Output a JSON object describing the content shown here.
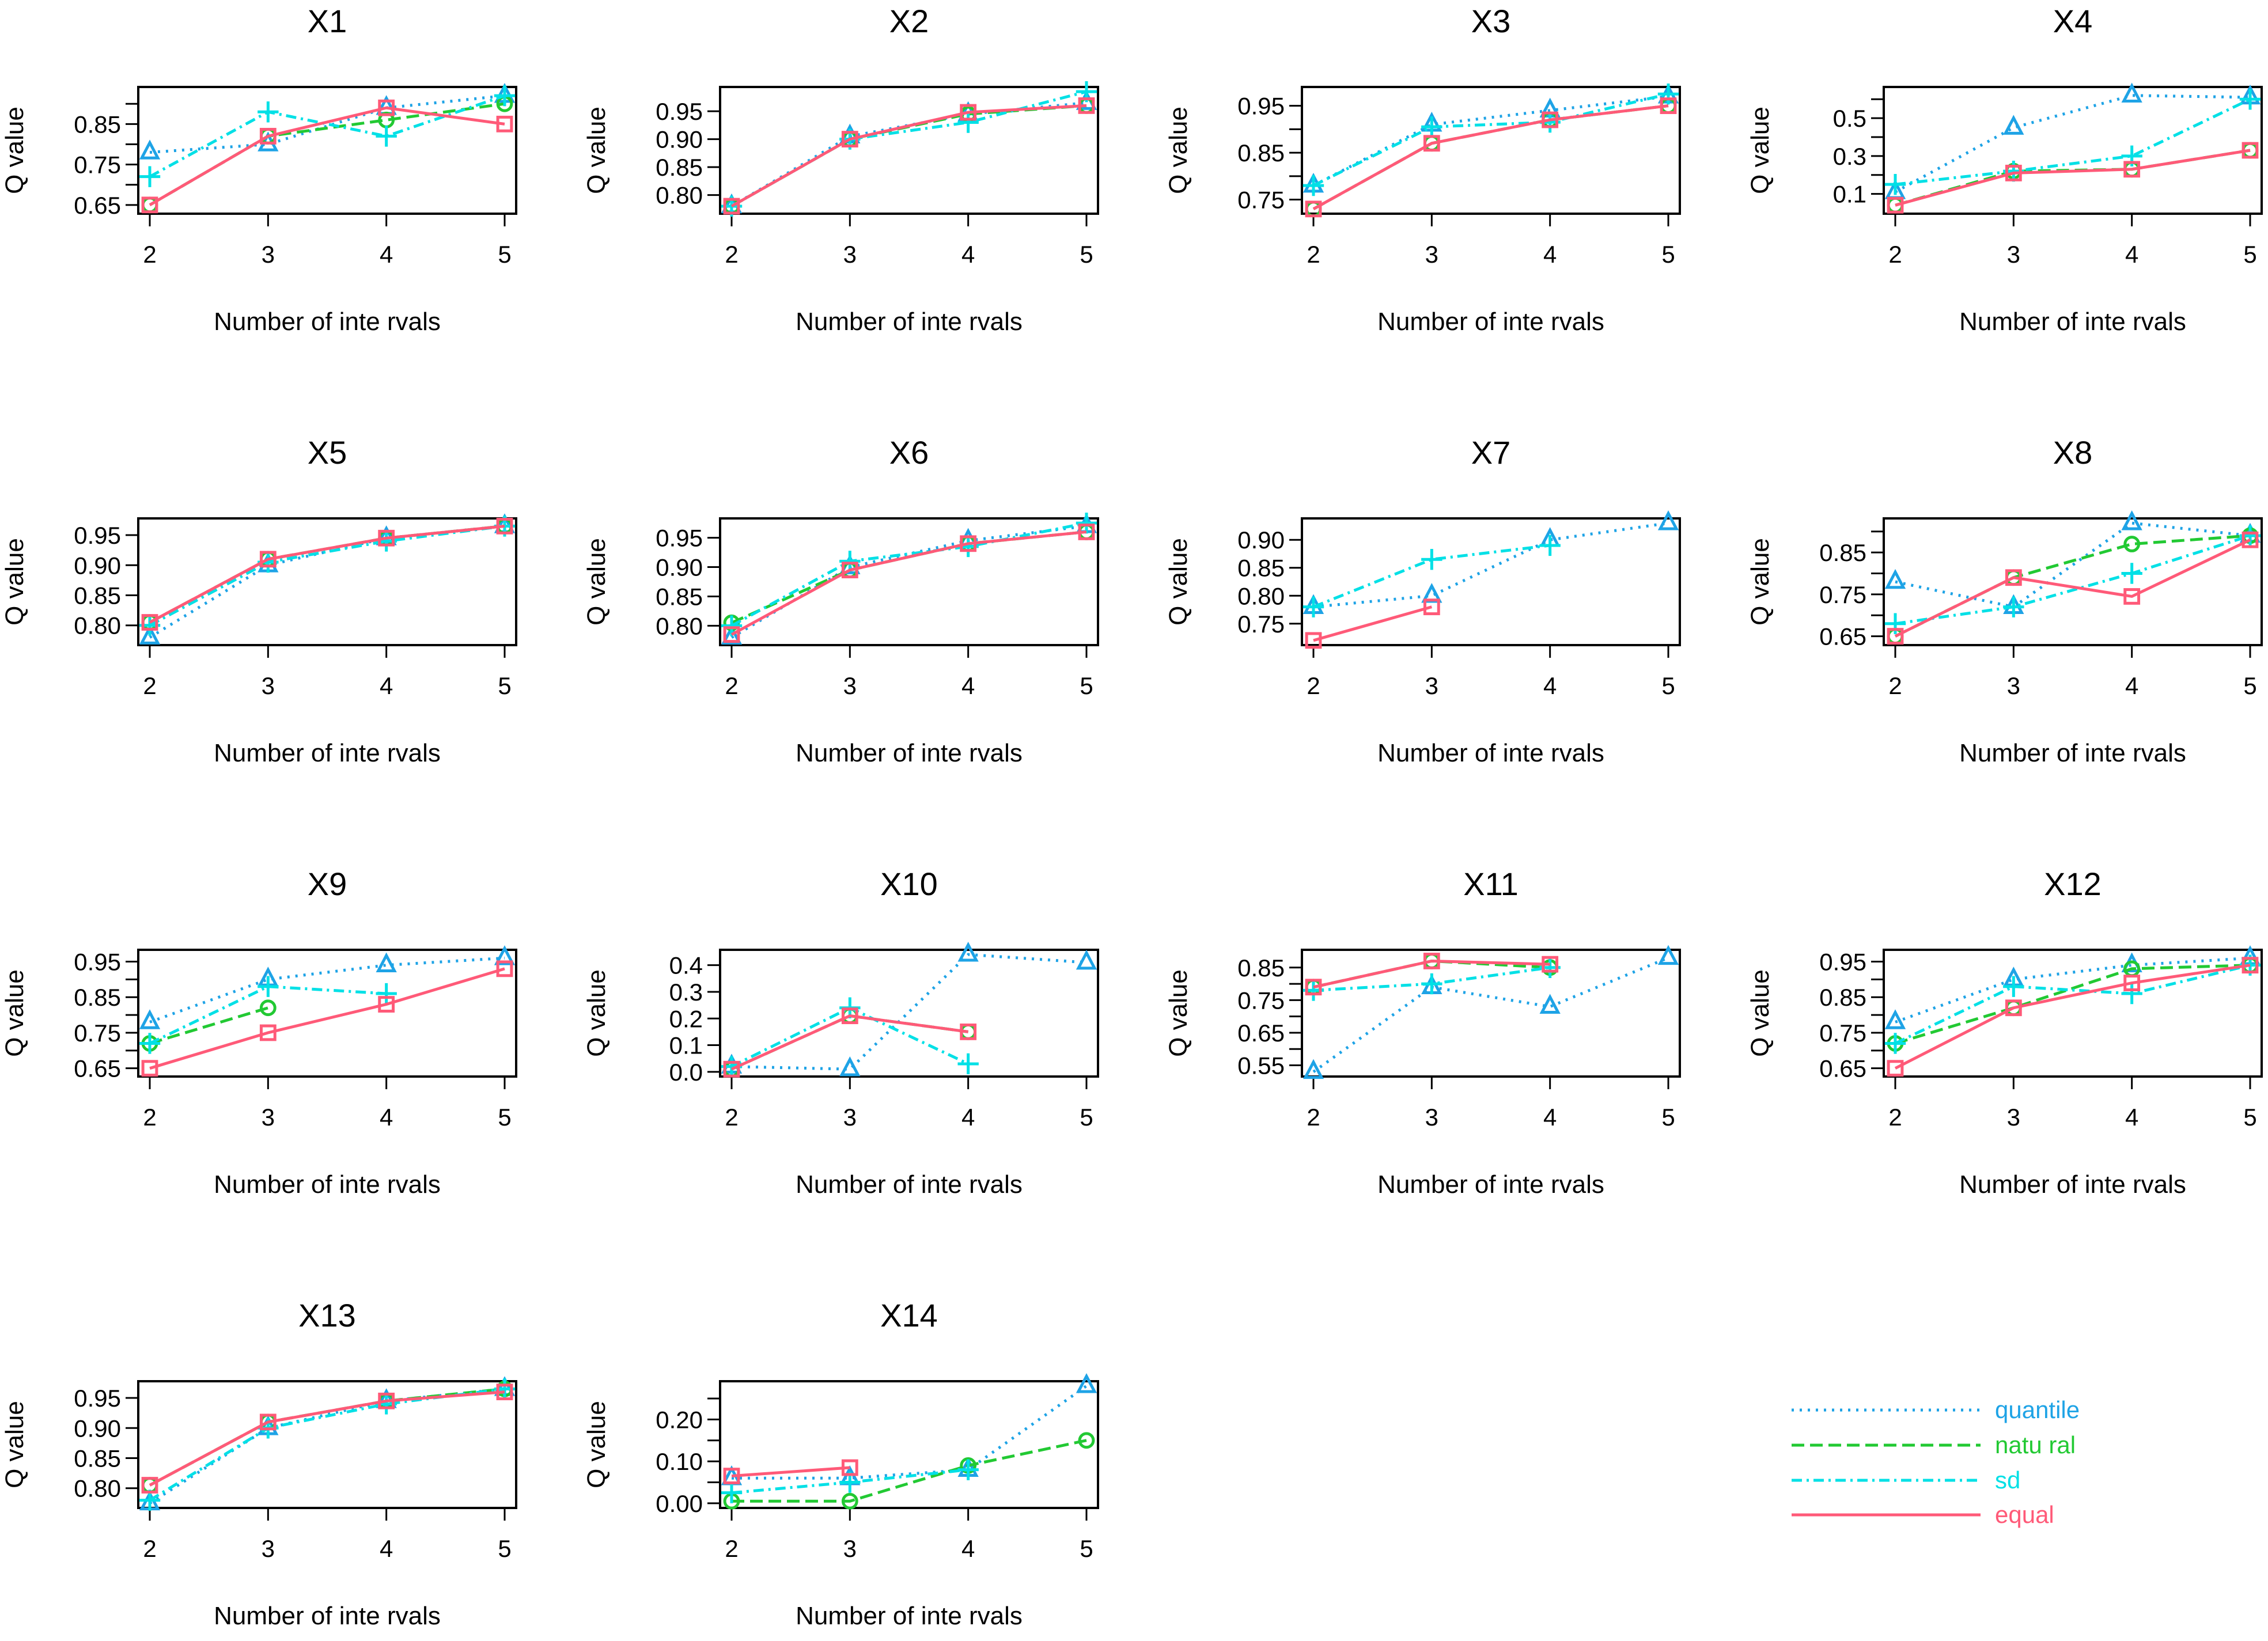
{
  "colors": {
    "quantile": "#1ea3e6",
    "natural": "#22c933",
    "sd": "#00e0e6",
    "equal": "#ff5a78"
  },
  "chart_data": {
    "type": "line",
    "xlabel": "Number of inte rvals",
    "ylabel": "Q value",
    "x": [
      2,
      3,
      4,
      5
    ],
    "legend": {
      "placement": "bottom-right",
      "entries": [
        {
          "name": "quantile",
          "style": "dotted",
          "marker": "triangle"
        },
        {
          "name": "natu ral",
          "style": "dashed",
          "marker": "circle"
        },
        {
          "name": "sd",
          "style": "dotdash",
          "marker": "plus"
        },
        {
          "name": "equal",
          "style": "solid",
          "marker": "square"
        }
      ]
    },
    "panels": [
      {
        "title": "X1",
        "ylim": [
          0.64,
          0.93
        ],
        "ticks": [
          0.65,
          0.7,
          0.75,
          0.8,
          0.85,
          0.9
        ],
        "tick_labels": [
          "0.65",
          "",
          "0.75",
          "",
          "0.85",
          ""
        ],
        "series": {
          "quantile": [
            0.78,
            0.8,
            0.89,
            0.92
          ],
          "natural": [
            0.65,
            0.82,
            0.86,
            0.9
          ],
          "sd": [
            0.72,
            0.88,
            0.82,
            0.92
          ],
          "equal": [
            0.65,
            0.82,
            0.89,
            0.85
          ]
        }
      },
      {
        "title": "X2",
        "ylim": [
          0.775,
          0.985
        ],
        "ticks": [
          0.8,
          0.85,
          0.9,
          0.95
        ],
        "tick_labels": [
          "0.80",
          "0.85",
          "0.90",
          "0.95"
        ],
        "series": {
          "quantile": [
            0.78,
            0.905,
            0.945,
            0.965
          ],
          "natural": [
            0.78,
            0.9,
            0.945,
            0.96
          ],
          "sd": [
            0.78,
            0.9,
            0.93,
            0.985
          ],
          "equal": [
            0.78,
            0.9,
            0.948,
            0.96
          ]
        }
      },
      {
        "title": "X3",
        "ylim": [
          0.73,
          0.98
        ],
        "ticks": [
          0.75,
          0.8,
          0.85,
          0.9,
          0.95
        ],
        "tick_labels": [
          "0.75",
          "",
          "0.85",
          "",
          "0.95"
        ],
        "series": {
          "quantile": [
            0.78,
            0.91,
            0.94,
            0.97
          ],
          "natural": [
            0.73,
            0.87,
            0.92,
            0.95
          ],
          "sd": [
            0.78,
            0.905,
            0.915,
            0.975
          ],
          "equal": [
            0.73,
            0.87,
            0.92,
            0.95
          ]
        }
      },
      {
        "title": "X4",
        "ylim": [
          0.02,
          0.64
        ],
        "ticks": [
          0.1,
          0.2,
          0.3,
          0.4,
          0.5,
          0.6
        ],
        "tick_labels": [
          "0.1",
          "",
          "0.3",
          "",
          "0.5",
          ""
        ],
        "series": {
          "quantile": [
            0.11,
            0.45,
            0.62,
            0.61
          ],
          "natural": [
            0.04,
            0.22,
            0.23,
            0.33
          ],
          "sd": [
            0.15,
            0.22,
            0.3,
            0.6
          ],
          "equal": [
            0.04,
            0.21,
            0.23,
            0.33
          ]
        }
      },
      {
        "title": "X5",
        "ylim": [
          0.775,
          0.97
        ],
        "ticks": [
          0.8,
          0.85,
          0.9,
          0.95
        ],
        "tick_labels": [
          "0.80",
          "0.85",
          "0.90",
          "0.95"
        ],
        "series": {
          "quantile": [
            0.78,
            0.9,
            0.945,
            0.965
          ],
          "natural": [
            0.805,
            0.91,
            0.945,
            0.965
          ],
          "sd": [
            0.8,
            0.905,
            0.94,
            0.965
          ],
          "equal": [
            0.805,
            0.91,
            0.945,
            0.965
          ]
        }
      },
      {
        "title": "X6",
        "ylim": [
          0.775,
          0.975
        ],
        "ticks": [
          0.8,
          0.85,
          0.9,
          0.95
        ],
        "tick_labels": [
          "0.80",
          "0.85",
          "0.90",
          "0.95"
        ],
        "series": {
          "quantile": [
            0.78,
            0.9,
            0.945,
            0.97
          ],
          "natural": [
            0.805,
            0.895,
            0.94,
            0.96
          ],
          "sd": [
            0.8,
            0.91,
            0.935,
            0.975
          ],
          "equal": [
            0.785,
            0.895,
            0.94,
            0.96
          ]
        }
      },
      {
        "title": "X7",
        "ylim": [
          0.72,
          0.93
        ],
        "ticks": [
          0.75,
          0.8,
          0.85,
          0.9
        ],
        "tick_labels": [
          "0.75",
          "0.80",
          "0.85",
          "0.90"
        ],
        "series": {
          "quantile": [
            0.78,
            0.8,
            0.9,
            0.93
          ],
          "natural": [
            null,
            null,
            null,
            null
          ],
          "sd": [
            0.78,
            0.865,
            0.89,
            null
          ],
          "equal": [
            0.72,
            0.78,
            null,
            null
          ]
        }
      },
      {
        "title": "X8",
        "ylim": [
          0.64,
          0.92
        ],
        "ticks": [
          0.65,
          0.7,
          0.75,
          0.8,
          0.85,
          0.9
        ],
        "tick_labels": [
          "0.65",
          "",
          "0.75",
          "",
          "0.85",
          ""
        ],
        "series": {
          "quantile": [
            0.78,
            0.72,
            0.92,
            0.89
          ],
          "natural": [
            0.65,
            0.79,
            0.87,
            0.89
          ],
          "sd": [
            0.68,
            0.72,
            0.8,
            0.89
          ],
          "equal": [
            0.65,
            0.79,
            0.745,
            0.88
          ]
        }
      },
      {
        "title": "X9",
        "ylim": [
          0.64,
          0.97
        ],
        "ticks": [
          0.65,
          0.7,
          0.75,
          0.8,
          0.85,
          0.9,
          0.95
        ],
        "tick_labels": [
          "0.65",
          "",
          "0.75",
          "",
          "0.85",
          "",
          "0.95"
        ],
        "series": {
          "quantile": [
            0.78,
            0.9,
            0.94,
            0.96
          ],
          "natural": [
            0.72,
            0.82,
            null,
            null
          ],
          "sd": [
            0.72,
            0.88,
            0.86,
            null
          ],
          "equal": [
            0.65,
            0.75,
            0.83,
            0.93
          ]
        }
      },
      {
        "title": "X10",
        "ylim": [
          0.0,
          0.44
        ],
        "ticks": [
          0.0,
          0.1,
          0.2,
          0.3,
          0.4
        ],
        "tick_labels": [
          "0.0",
          "0.1",
          "0.2",
          "0.3",
          "0.4"
        ],
        "series": {
          "quantile": [
            0.02,
            0.01,
            0.44,
            0.41
          ],
          "natural": [
            0.01,
            0.21,
            0.15,
            null
          ],
          "sd": [
            0.02,
            0.24,
            0.03,
            null
          ],
          "equal": [
            0.01,
            0.21,
            0.15,
            null
          ]
        }
      },
      {
        "title": "X11",
        "ylim": [
          0.53,
          0.89
        ],
        "ticks": [
          0.55,
          0.6,
          0.65,
          0.7,
          0.75,
          0.8,
          0.85
        ],
        "tick_labels": [
          "0.55",
          "",
          "0.65",
          "",
          "0.75",
          "",
          "0.85"
        ],
        "series": {
          "quantile": [
            0.53,
            0.79,
            0.73,
            0.88
          ],
          "natural": [
            0.79,
            0.87,
            0.85,
            null
          ],
          "sd": [
            0.78,
            0.8,
            0.85,
            null
          ],
          "equal": [
            0.79,
            0.87,
            0.86,
            null
          ]
        }
      },
      {
        "title": "X12",
        "ylim": [
          0.64,
          0.97
        ],
        "ticks": [
          0.65,
          0.7,
          0.75,
          0.8,
          0.85,
          0.9,
          0.95
        ],
        "tick_labels": [
          "0.65",
          "",
          "0.75",
          "",
          "0.85",
          "",
          "0.95"
        ],
        "series": {
          "quantile": [
            0.78,
            0.9,
            0.94,
            0.96
          ],
          "natural": [
            0.72,
            0.82,
            0.93,
            0.94
          ],
          "sd": [
            0.72,
            0.88,
            0.86,
            0.94
          ],
          "equal": [
            0.65,
            0.82,
            0.89,
            0.94
          ]
        }
      },
      {
        "title": "X13",
        "ylim": [
          0.775,
          0.97
        ],
        "ticks": [
          0.8,
          0.85,
          0.9,
          0.95
        ],
        "tick_labels": [
          "0.80",
          "0.85",
          "0.90",
          "0.95"
        ],
        "series": {
          "quantile": [
            0.775,
            0.9,
            0.945,
            0.965
          ],
          "natural": [
            0.805,
            0.91,
            0.945,
            0.965
          ],
          "sd": [
            0.78,
            0.9,
            0.94,
            0.965
          ],
          "equal": [
            0.805,
            0.91,
            0.945,
            0.96
          ]
        }
      },
      {
        "title": "X14",
        "ylim": [
          0.0,
          0.28
        ],
        "ticks": [
          0.0,
          0.05,
          0.1,
          0.15,
          0.2,
          0.25
        ],
        "tick_labels": [
          "0.00",
          "",
          "0.10",
          "",
          "0.20",
          ""
        ],
        "series": {
          "quantile": [
            0.06,
            0.06,
            0.08,
            0.28
          ],
          "natural": [
            0.005,
            0.005,
            0.09,
            0.15
          ],
          "sd": [
            0.025,
            0.05,
            0.08,
            null
          ],
          "equal": [
            0.065,
            0.085,
            null,
            null
          ]
        }
      }
    ]
  }
}
